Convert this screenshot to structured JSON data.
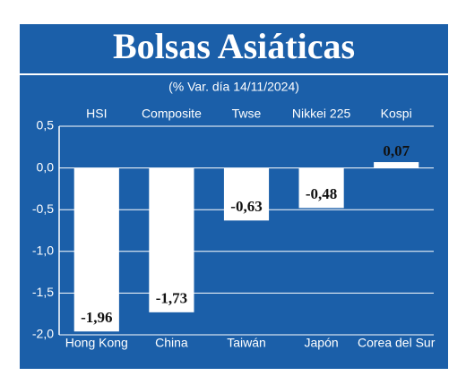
{
  "chart_data": {
    "type": "bar",
    "title": "Bolsas Asiáticas",
    "subtitle": "(% Var. día 14/11/2024)",
    "indices": [
      "HSI",
      "Composite",
      "Twse",
      "Nikkei 225",
      "Kospi"
    ],
    "categories": [
      "Hong Kong",
      "China",
      "Taiwán",
      "Japón",
      "Corea del Sur"
    ],
    "values": [
      -1.96,
      -1.73,
      -0.63,
      -0.48,
      0.07
    ],
    "value_labels": [
      "-1,96",
      "-1,73",
      "-0,63",
      "-0,48",
      "0,07"
    ],
    "color": "#ffffff",
    "ylim": [
      -2.0,
      0.5
    ],
    "yticks": [
      {
        "value": -2.0,
        "label": "-2,0"
      },
      {
        "value": -1.5,
        "label": "-1,5"
      },
      {
        "value": -1.0,
        "label": "-1,0"
      },
      {
        "value": -0.5,
        "label": "-0,5"
      },
      {
        "value": 0.0,
        "label": "0,0"
      },
      {
        "value": 0.5,
        "label": "0,5"
      }
    ],
    "grid": true
  }
}
